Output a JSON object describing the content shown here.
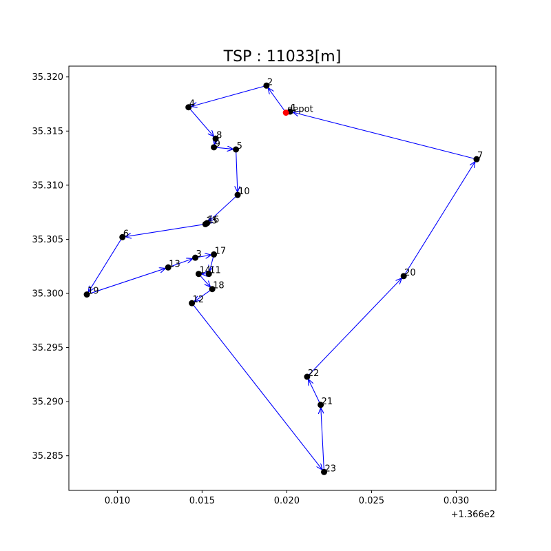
{
  "chart_data": {
    "type": "scatter",
    "title": "TSP : 11033[m]",
    "xlabel": "",
    "ylabel": "",
    "x_offset_label": "+1.366e2",
    "xlim": [
      136.60714,
      136.63234
    ],
    "ylim": [
      35.2818,
      35.321
    ],
    "x_ticks": [
      136.61,
      136.615,
      136.62,
      136.625,
      136.63
    ],
    "x_tick_labels": [
      "0.010",
      "0.015",
      "0.020",
      "0.025",
      "0.030"
    ],
    "y_ticks": [
      35.285,
      35.29,
      35.295,
      35.3,
      35.305,
      35.31,
      35.315,
      35.32
    ],
    "y_tick_labels": [
      "35.285",
      "35.290",
      "35.295",
      "35.300",
      "35.305",
      "35.310",
      "35.315",
      "35.320"
    ],
    "grid": false,
    "colors": {
      "route": "#0000ff",
      "node": "#000000",
      "depot": "#ff0000"
    },
    "depot": {
      "label": "depot",
      "x": 136.61995,
      "y": 35.3167
    },
    "nodes": [
      {
        "id": "1",
        "x": 136.6202,
        "y": 35.3168
      },
      {
        "id": "2",
        "x": 136.6188,
        "y": 35.3192
      },
      {
        "id": "3",
        "x": 136.6146,
        "y": 35.3033
      },
      {
        "id": "4",
        "x": 136.6142,
        "y": 35.3172
      },
      {
        "id": "5",
        "x": 136.617,
        "y": 35.3133
      },
      {
        "id": "6",
        "x": 136.6103,
        "y": 35.3052
      },
      {
        "id": "7",
        "x": 136.6312,
        "y": 35.3124
      },
      {
        "id": "8",
        "x": 136.6158,
        "y": 35.3143
      },
      {
        "id": "9",
        "x": 136.6157,
        "y": 35.3135
      },
      {
        "id": "10",
        "x": 136.6171,
        "y": 35.3091
      },
      {
        "id": "11",
        "x": 136.6154,
        "y": 35.3018
      },
      {
        "id": "12",
        "x": 136.6144,
        "y": 35.2991
      },
      {
        "id": "13",
        "x": 136.613,
        "y": 35.3024
      },
      {
        "id": "14",
        "x": 136.6148,
        "y": 35.3018
      },
      {
        "id": "15",
        "x": 136.6152,
        "y": 35.3064
      },
      {
        "id": "16",
        "x": 136.6153,
        "y": 35.3065
      },
      {
        "id": "17",
        "x": 136.6157,
        "y": 35.3036
      },
      {
        "id": "18",
        "x": 136.6156,
        "y": 35.3004
      },
      {
        "id": "19",
        "x": 136.6082,
        "y": 35.2999
      },
      {
        "id": "20",
        "x": 136.6269,
        "y": 35.3016
      },
      {
        "id": "21",
        "x": 136.622,
        "y": 35.2897
      },
      {
        "id": "22",
        "x": 136.6212,
        "y": 35.2923
      },
      {
        "id": "23",
        "x": 136.6222,
        "y": 35.2835
      }
    ],
    "route": [
      "depot",
      "2",
      "4",
      "8",
      "9",
      "5",
      "10",
      "16",
      "15",
      "6",
      "19",
      "13",
      "3",
      "17",
      "11",
      "14",
      "18",
      "12",
      "23",
      "21",
      "22",
      "20",
      "7",
      "1"
    ]
  }
}
